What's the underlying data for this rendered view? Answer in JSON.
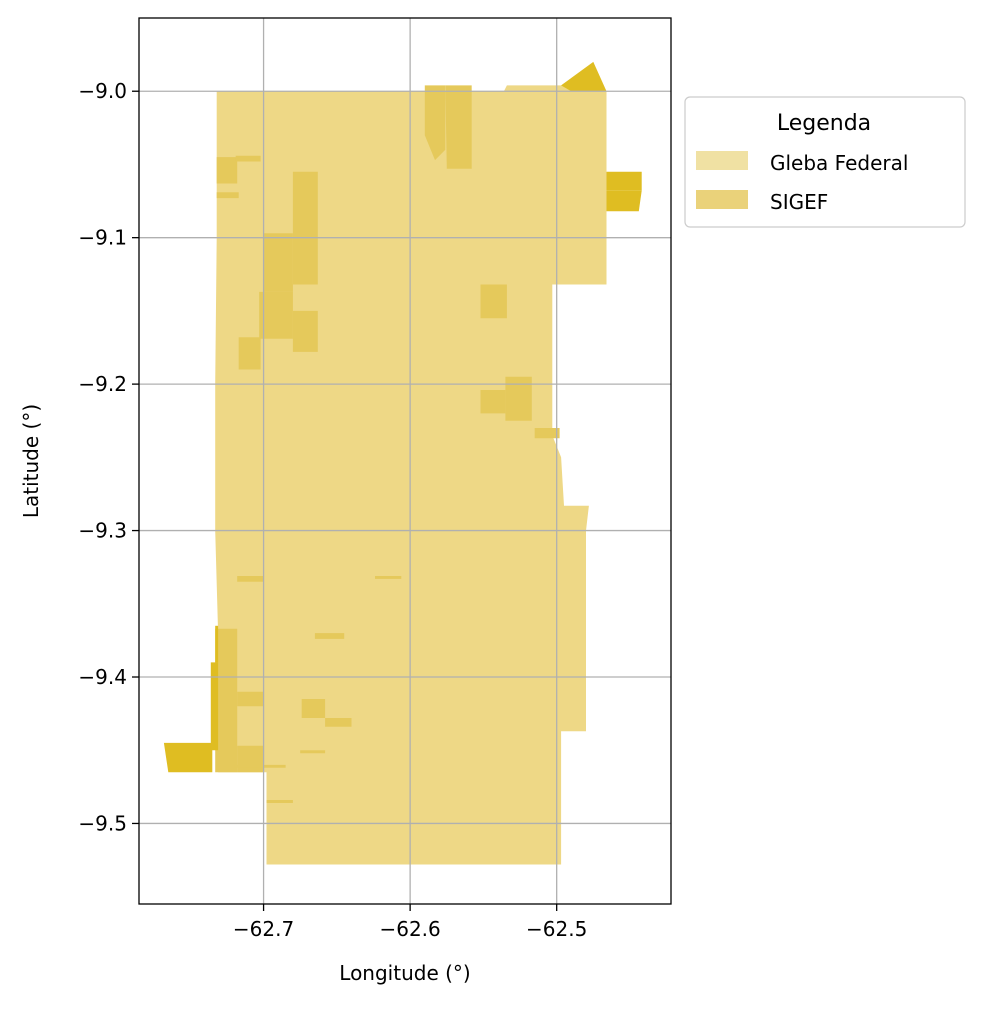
{
  "chart_data": {
    "type": "map",
    "title": "",
    "xlabel": "Longitude (°)",
    "ylabel": "Latitude (°)",
    "xlim": [
      -62.785,
      -62.422
    ],
    "ylim": [
      -9.555,
      -8.95
    ],
    "xticks": [
      -62.7,
      -62.6,
      -62.5
    ],
    "xtick_labels": [
      "−62.7",
      "−62.6",
      "−62.5"
    ],
    "yticks": [
      -9.0,
      -9.1,
      -9.2,
      -9.3,
      -9.4,
      -9.5
    ],
    "ytick_labels": [
      "−9.0",
      "−9.1",
      "−9.2",
      "−9.3",
      "−9.4",
      "−9.5"
    ],
    "grid": true,
    "legend": {
      "title": "Legenda",
      "placement": "outside-top-right",
      "entries": [
        {
          "label": "Gleba Federal",
          "color": "#f0e1a3"
        },
        {
          "label": "SIGEF",
          "color": "#ead27a"
        }
      ]
    },
    "layers": [
      {
        "name": "Gleba Federal",
        "color": "#eed886",
        "polygons": [
          [
            [
              -62.732,
              -9.0
            ],
            [
              -62.536,
              -9.0
            ],
            [
              -62.534,
              -8.996
            ],
            [
              -62.492,
              -8.996
            ],
            [
              -62.49,
              -9.0
            ],
            [
              -62.466,
              -9.0
            ],
            [
              -62.466,
              -9.132
            ],
            [
              -62.503,
              -9.132
            ],
            [
              -62.503,
              -9.235
            ],
            [
              -62.497,
              -9.25
            ],
            [
              -62.495,
              -9.283
            ],
            [
              -62.478,
              -9.283
            ],
            [
              -62.48,
              -9.3
            ],
            [
              -62.48,
              -9.437
            ],
            [
              -62.497,
              -9.437
            ],
            [
              -62.497,
              -9.528
            ],
            [
              -62.698,
              -9.528
            ],
            [
              -62.698,
              -9.465
            ],
            [
              -62.731,
              -9.465
            ],
            [
              -62.731,
              -9.37
            ],
            [
              -62.733,
              -9.3
            ],
            [
              -62.733,
              -9.2
            ],
            [
              -62.732,
              -9.1
            ]
          ]
        ]
      },
      {
        "name": "SIGEF",
        "color": "#e5c95b",
        "polygons": [
          [
            [
              -62.576,
              -8.996
            ],
            [
              -62.558,
              -8.996
            ],
            [
              -62.558,
              -9.053
            ],
            [
              -62.575,
              -9.053
            ]
          ],
          [
            [
              -62.59,
              -8.996
            ],
            [
              -62.576,
              -8.996
            ],
            [
              -62.576,
              -9.04
            ],
            [
              -62.583,
              -9.047
            ],
            [
              -62.59,
              -9.03
            ]
          ],
          [
            [
              -62.68,
              -9.055
            ],
            [
              -62.663,
              -9.055
            ],
            [
              -62.663,
              -9.132
            ],
            [
              -62.68,
              -9.132
            ]
          ],
          [
            [
              -62.7,
              -9.097
            ],
            [
              -62.68,
              -9.097
            ],
            [
              -62.68,
              -9.137
            ],
            [
              -62.7,
              -9.137
            ]
          ],
          [
            [
              -62.703,
              -9.137
            ],
            [
              -62.68,
              -9.137
            ],
            [
              -62.68,
              -9.169
            ],
            [
              -62.703,
              -9.169
            ]
          ],
          [
            [
              -62.68,
              -9.15
            ],
            [
              -62.663,
              -9.15
            ],
            [
              -62.663,
              -9.178
            ],
            [
              -62.68,
              -9.178
            ]
          ],
          [
            [
              -62.717,
              -9.168
            ],
            [
              -62.702,
              -9.168
            ],
            [
              -62.702,
              -9.19
            ],
            [
              -62.717,
              -9.19
            ]
          ],
          [
            [
              -62.732,
              -9.045
            ],
            [
              -62.718,
              -9.045
            ],
            [
              -62.718,
              -9.063
            ],
            [
              -62.732,
              -9.063
            ]
          ],
          [
            [
              -62.719,
              -9.044
            ],
            [
              -62.702,
              -9.044
            ],
            [
              -62.702,
              -9.048
            ],
            [
              -62.719,
              -9.048
            ]
          ],
          [
            [
              -62.732,
              -9.069
            ],
            [
              -62.717,
              -9.069
            ],
            [
              -62.717,
              -9.073
            ],
            [
              -62.732,
              -9.073
            ]
          ],
          [
            [
              -62.552,
              -9.132
            ],
            [
              -62.534,
              -9.132
            ],
            [
              -62.534,
              -9.155
            ],
            [
              -62.552,
              -9.155
            ]
          ],
          [
            [
              -62.535,
              -9.195
            ],
            [
              -62.517,
              -9.195
            ],
            [
              -62.517,
              -9.225
            ],
            [
              -62.535,
              -9.225
            ]
          ],
          [
            [
              -62.552,
              -9.204
            ],
            [
              -62.535,
              -9.204
            ],
            [
              -62.535,
              -9.22
            ],
            [
              -62.552,
              -9.22
            ]
          ],
          [
            [
              -62.515,
              -9.23
            ],
            [
              -62.498,
              -9.23
            ],
            [
              -62.498,
              -9.237
            ],
            [
              -62.515,
              -9.237
            ]
          ],
          [
            [
              -62.733,
              -9.367
            ],
            [
              -62.718,
              -9.367
            ],
            [
              -62.718,
              -9.465
            ],
            [
              -62.733,
              -9.465
            ]
          ],
          [
            [
              -62.718,
              -9.41
            ],
            [
              -62.7,
              -9.41
            ],
            [
              -62.7,
              -9.42
            ],
            [
              -62.718,
              -9.42
            ]
          ],
          [
            [
              -62.718,
              -9.447
            ],
            [
              -62.7,
              -9.447
            ],
            [
              -62.7,
              -9.465
            ],
            [
              -62.718,
              -9.465
            ]
          ],
          [
            [
              -62.674,
              -9.415
            ],
            [
              -62.658,
              -9.415
            ],
            [
              -62.658,
              -9.428
            ],
            [
              -62.674,
              -9.428
            ]
          ],
          [
            [
              -62.658,
              -9.428
            ],
            [
              -62.64,
              -9.428
            ],
            [
              -62.64,
              -9.434
            ],
            [
              -62.658,
              -9.434
            ]
          ],
          [
            [
              -62.718,
              -9.331
            ],
            [
              -62.7,
              -9.331
            ],
            [
              -62.7,
              -9.335
            ],
            [
              -62.718,
              -9.335
            ]
          ],
          [
            [
              -62.665,
              -9.37
            ],
            [
              -62.645,
              -9.37
            ],
            [
              -62.645,
              -9.374
            ],
            [
              -62.665,
              -9.374
            ]
          ],
          [
            [
              -62.624,
              -9.331
            ],
            [
              -62.606,
              -9.331
            ],
            [
              -62.606,
              -9.333
            ],
            [
              -62.624,
              -9.333
            ]
          ],
          [
            [
              -62.72,
              -9.46
            ],
            [
              -62.685,
              -9.46
            ],
            [
              -62.685,
              -9.462
            ],
            [
              -62.72,
              -9.462
            ]
          ],
          [
            [
              -62.698,
              -9.484
            ],
            [
              -62.68,
              -9.484
            ],
            [
              -62.68,
              -9.486
            ],
            [
              -62.698,
              -9.486
            ]
          ],
          [
            [
              -62.675,
              -9.45
            ],
            [
              -62.658,
              -9.45
            ],
            [
              -62.658,
              -9.452
            ],
            [
              -62.675,
              -9.452
            ]
          ]
        ]
      },
      {
        "name": "SIGEF",
        "color": "#dfbd22",
        "polygons": [
          [
            [
              -62.497,
              -8.996
            ],
            [
              -62.475,
              -8.98
            ],
            [
              -62.466,
              -9.0
            ],
            [
              -62.49,
              -9.0
            ]
          ],
          [
            [
              -62.466,
              -9.055
            ],
            [
              -62.442,
              -9.055
            ],
            [
              -62.442,
              -9.068
            ],
            [
              -62.466,
              -9.068
            ]
          ],
          [
            [
              -62.466,
              -9.068
            ],
            [
              -62.442,
              -9.068
            ],
            [
              -62.444,
              -9.082
            ],
            [
              -62.466,
              -9.082
            ]
          ],
          [
            [
              -62.768,
              -9.445
            ],
            [
              -62.735,
              -9.445
            ],
            [
              -62.735,
              -9.465
            ],
            [
              -62.765,
              -9.465
            ]
          ],
          [
            [
              -62.736,
              -9.39
            ],
            [
              -62.731,
              -9.39
            ],
            [
              -62.731,
              -9.45
            ],
            [
              -62.736,
              -9.45
            ]
          ],
          [
            [
              -62.733,
              -9.365
            ],
            [
              -62.731,
              -9.365
            ],
            [
              -62.731,
              -9.39
            ],
            [
              -62.733,
              -9.39
            ]
          ]
        ]
      }
    ]
  }
}
